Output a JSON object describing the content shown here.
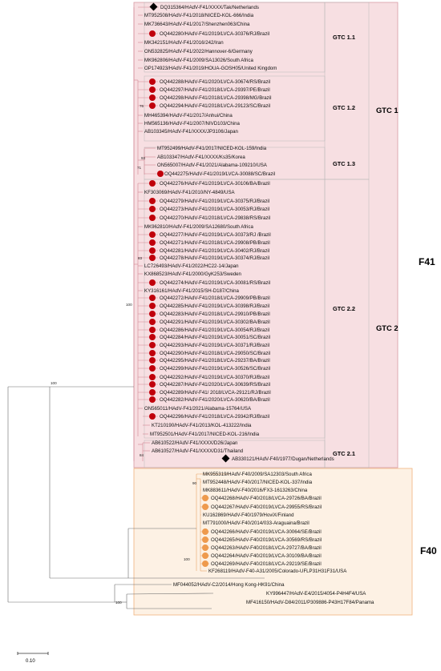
{
  "colors": {
    "f41_bg": "#f7dfe2",
    "f41_border": "#d89aa4",
    "f40_bg": "#fdf1e4",
    "f40_border": "#f0b37e",
    "brazil_f41": "#c0000b",
    "brazil_f40": "#ee9a4d",
    "reference": "#000000",
    "tree_f41": "#d28794",
    "tree_f40": "#eaa568",
    "tree_other": "#6b6b6b"
  },
  "species": {
    "f41": "F41",
    "f40": "F40"
  },
  "clusters": {
    "gtc1": "GTC 1",
    "gtc2": "GTC 2",
    "gtc11": "GTC 1.1",
    "gtc12": "GTC 1.2",
    "gtc13": "GTC 1.3",
    "gtc22": "GTC 2.2",
    "gtc21": "GTC 2.1"
  },
  "bootstrap": [
    "100",
    "76",
    "93",
    "71",
    "83",
    "84",
    "100",
    "90",
    "100",
    "100"
  ],
  "scale_bar": "0.10",
  "taxa": [
    {
      "label": "DQ315364/HAdV-F41/XXXX/Tak/Netherlands",
      "marker": "diamond"
    },
    {
      "label": "MT952508/HAdV-F41/2018/NICED-KOL-666/India",
      "marker": ""
    },
    {
      "label": "MK736643/HAdV-F41/2017/Shenzhen063/China",
      "marker": ""
    },
    {
      "label": "OQ442280/HAdV-F41/2019/LVCA-30376/RJ/Brazil",
      "marker": "red"
    },
    {
      "label": "MK342151/HAdV-F41/2016/242/Iran",
      "marker": ""
    },
    {
      "label": "ON532825/HAdV-F41/2022/Hannover-6/Germany",
      "marker": ""
    },
    {
      "label": "MK962806/HAdV-F41/2009/SA13026/South Africa",
      "marker": ""
    },
    {
      "label": "OP174923/HAdV-F41/2019/HOUA-GOSH05/United Kingdom",
      "marker": ""
    },
    {
      "label": "OQ442288/HAdV-F41/2020/LVCA-30674/RS/Brazil",
      "marker": "red"
    },
    {
      "label": "OQ442297/HAdV-F41/2018/LVCA-29397/PE/Brazil",
      "marker": "red"
    },
    {
      "label": "OQ442298/HAdV-F41/2018/LVCA-29398/MG/Brazil",
      "marker": "red"
    },
    {
      "label": "OQ442294/HAdV-F41/2018/LVCA-29123/SC/Brazil",
      "marker": "red"
    },
    {
      "label": "MH465394/HAdV-F41/2017/Anhui/China",
      "marker": ""
    },
    {
      "label": "HM565136/HAdV-F41/2007/NIVD103/China",
      "marker": ""
    },
    {
      "label": "AB103345/HAdV-F41/XXXX/JP3106/Japan",
      "marker": ""
    },
    {
      "label": "MT952499/HAdV-F41/2017/NICED-KOL-159/India",
      "marker": ""
    },
    {
      "label": "AB103347/HAdV-F41/XXXX/Ks35/Korea",
      "marker": ""
    },
    {
      "label": "ON565007/HAdV-F41/2021/Alabama-109210/USA",
      "marker": ""
    },
    {
      "label": "OQ442275/HAdV-F41/2019/LVCA-30088/SC/Brazil",
      "marker": "red"
    },
    {
      "label": "OQ442276/HAdV-F41/2019/LVCA-30106/BA/Brazil",
      "marker": "red"
    },
    {
      "label": "KF303069/HAdV-F41/2010/NY-4849/USA",
      "marker": ""
    },
    {
      "label": "OQ442279/HAdV-F41/2019/LVCA-30375/RJ/Brazil",
      "marker": "red"
    },
    {
      "label": "OQ442273/HAdV-F41/2019/LVCA-30053/RJ/Brazil",
      "marker": "red"
    },
    {
      "label": "OQ442270/HAdV-F41/2018/LVCA-29838/RS/Brazil",
      "marker": "red"
    },
    {
      "label": "MK962810/HAdV-F41/2009/SA12680/South Africa",
      "marker": ""
    },
    {
      "label": "OQ442277/HAdV-F41/2019/LVCA-30373/RJ /Brazil",
      "marker": "red"
    },
    {
      "label": "OQ442271/HAdV-F41/2018/LVCA-29908/PB/Brazil",
      "marker": "red"
    },
    {
      "label": "OQ442281/HAdV-F41/2019/LVCA-30402/RJ/Brazil",
      "marker": "red"
    },
    {
      "label": "OQ442278/HAdV-F41/2019/LVCA-30374/RJ/Brazil",
      "marker": "red"
    },
    {
      "label": "LC726493/HAdV-F41/2022/HC22-14/Japan",
      "marker": ""
    },
    {
      "label": "KX868523/HAdV-F41/2000/GyK253/Sweden",
      "marker": ""
    },
    {
      "label": "OQ442274/HAdV-F41/2019/LVCA-30081/RS/Brazil",
      "marker": "red"
    },
    {
      "label": "KY316161/HAdV-F41/2015/SH-D187/China",
      "marker": ""
    },
    {
      "label": "OQ442272/HAdV-F41/2018/LVCA-29909/PB/Brazil",
      "marker": "red"
    },
    {
      "label": "OQ442285/HAdV-F41/2019/LVCA-30398/RJ/Brazil",
      "marker": "red"
    },
    {
      "label": "OQ442283/HAdV-F41/2018/LVCA-29910/PB/Brazil",
      "marker": "red"
    },
    {
      "label": "OQ442291/HAdV-F41/2019/LVCA-30302/BA/Brazil",
      "marker": "red"
    },
    {
      "label": "OQ442286/HAdV-F41/2019/LVCA-30054/RJ/Brazil",
      "marker": "red"
    },
    {
      "label": "OQ442284/HAdV-F41/2019/LVCA-30051/SC/Brazil",
      "marker": "red"
    },
    {
      "label": "OQ442293/HAdV-F41/2019/LVCA-30371/RJ/Brazil",
      "marker": "red"
    },
    {
      "label": "OQ442290/HAdV-F41/2018/LVCA-29050/SC/Brazil",
      "marker": "red"
    },
    {
      "label": "OQ442295/HAdV-F41/2018/LVCA-29237/BA/Brazil",
      "marker": "red"
    },
    {
      "label": "OQ442299/HAdV-F41/2019/LVCA-30526/SC/Brazil",
      "marker": "red"
    },
    {
      "label": "OQ442292/HAdV-F41/2019/LVCA-30370/RJ/Brazil",
      "marker": "red"
    },
    {
      "label": "OQ442287/HAdV-F41/2020/LVCA-30639/RS/Brazil",
      "marker": "red"
    },
    {
      "label": "OQ442289/HAdV-F41/ 2018/LVCA-29121/RJ/Brazil",
      "marker": "red"
    },
    {
      "label": "OQ442282/HAdV-F41/2020/LVCA-30620/BA/Brazil",
      "marker": "red"
    },
    {
      "label": "ON565011/HAdV-F41/2021/Alabama-15764/USA",
      "marker": ""
    },
    {
      "label": "OQ442296/HAdV-F41/2018/LVCA-29342/RJ/Brazil",
      "marker": "red"
    },
    {
      "label": "KT210190/HAdV-F41/2013/KOL-413222/India",
      "marker": ""
    },
    {
      "label": "MT952501/HAdV-F41/2017/NICED-KOL-216/India",
      "marker": ""
    },
    {
      "label": "AB610522/HAdV-F41/XXXX/D26/Japan",
      "marker": ""
    },
    {
      "label": "AB610527/HAdV-F41/XXXX/D31/Thailand",
      "marker": ""
    },
    {
      "label": "AB330121/HAdV-F40/1977/Dugan/Netherlands",
      "marker": "diamond"
    },
    {
      "label": "MK955319/HAdV-F40/2009/SA12303/South Africa",
      "marker": ""
    },
    {
      "label": "MT952448/HAdV-F40/2017/NICED-KOL-337/India",
      "marker": ""
    },
    {
      "label": "MK883611/HAdV-F40/2016/FX3-1613263/China",
      "marker": ""
    },
    {
      "label": "OQ442268/HAdV-F40/2018/LVCA-29726/BA/Brazil",
      "marker": "orange"
    },
    {
      "label": "OQ442267/HAdV-F40/2019/LVCA-29955/RS/Brazil",
      "marker": "orange"
    },
    {
      "label": "KU162869/HAdV-F40/1979/HoviX/Finland",
      "marker": ""
    },
    {
      "label": "MT791000/HAdV-F40/2014/033-Araguaina/Brazil",
      "marker": ""
    },
    {
      "label": "OQ442266/HAdV-F40/2019/LVCA-30064/SE/Brazil",
      "marker": "orange"
    },
    {
      "label": "OQ442265/HAdV-F40/2019/LVCA-30569/RS/Brazil",
      "marker": "orange"
    },
    {
      "label": "OQ442263/HAdV-F40/2018/LVCA-29727/BA/Brazil",
      "marker": "orange"
    },
    {
      "label": "OQ442264/HAdV-F40/2019/LVCA-30109/BA/Brazil",
      "marker": "orange"
    },
    {
      "label": "OQ442269/HAdV-F40/2018/LVCA-29219/SE/Brazil",
      "marker": "orange"
    },
    {
      "label": "KF268119/HAdV-F40-A31/2005/Colorado-UFLP31H31F31/USA",
      "marker": ""
    },
    {
      "label": "MF044052/HAdV-C2/2014/Hong Kong-HK91/China",
      "marker": ""
    },
    {
      "label": "KY996447/HAdV-E4/2015/4054-P4H4F4/USA",
      "marker": ""
    },
    {
      "label": "MF416150/HAdV-D84/2011/P309886-P43H17F84/Panama",
      "marker": ""
    }
  ]
}
